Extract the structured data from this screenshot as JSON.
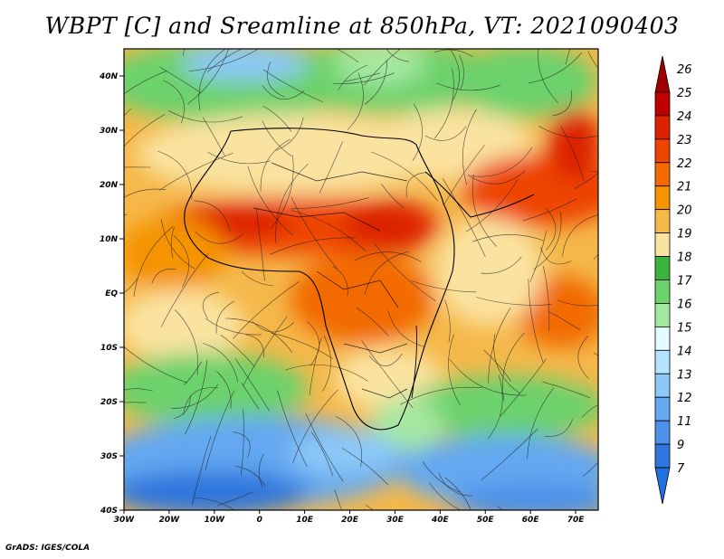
{
  "title": "WBPT [C] and Sreamline at 850hPa, VT: 2021090403",
  "credit": "GrADS: IGES/COLA",
  "map": {
    "lon_range": [
      -30,
      75
    ],
    "lat_range": [
      -40,
      45
    ],
    "lat_ticks": [
      "40N",
      "30N",
      "20N",
      "10N",
      "EQ",
      "10S",
      "20S",
      "30S",
      "40S"
    ],
    "lat_tick_values": [
      40,
      30,
      20,
      10,
      0,
      -10,
      -20,
      -30,
      -40
    ],
    "lon_ticks": [
      "30W",
      "20W",
      "10W",
      "0",
      "10E",
      "20E",
      "30E",
      "40E",
      "50E",
      "60E",
      "70E"
    ],
    "lon_tick_values": [
      -30,
      -20,
      -10,
      0,
      10,
      20,
      30,
      40,
      50,
      60,
      70
    ]
  },
  "colorbar": {
    "labels": [
      "26",
      "25",
      "24",
      "23",
      "22",
      "21",
      "20",
      "19",
      "18",
      "17",
      "16",
      "15",
      "14",
      "13",
      "12",
      "11",
      "9",
      "7"
    ],
    "colors": [
      "#a00000",
      "#c00000",
      "#dd2200",
      "#ee4400",
      "#f26a00",
      "#f59300",
      "#f5b84a",
      "#fae3a0",
      "#3cb43c",
      "#6cd26c",
      "#a4e8a0",
      "#e4fbff",
      "#b4e4ff",
      "#8cc8f8",
      "#64a8f0",
      "#4c90e8",
      "#2f76dd",
      "#2070e0"
    ]
  }
}
